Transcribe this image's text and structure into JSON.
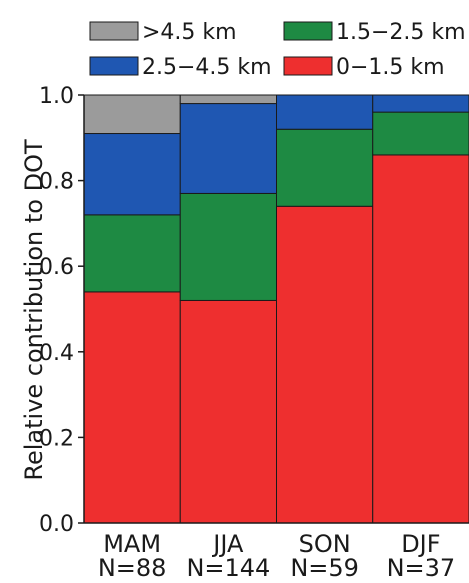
{
  "chart_data": {
    "type": "bar",
    "stacked": true,
    "title": "",
    "xlabel": "",
    "ylabel": "Relative contribution to DOT",
    "ylim": [
      0,
      1.0
    ],
    "yticks": [
      "0.0",
      "0.2",
      "0.4",
      "0.6",
      "0.8",
      "1.0"
    ],
    "grid": false,
    "legend_position": "top",
    "categories": [
      "MAM",
      "JJA",
      "SON",
      "DJF"
    ],
    "category_counts": [
      "N=88",
      "N=144",
      "N=59",
      "N=37"
    ],
    "series": [
      {
        "name": "0−1.5 km",
        "color": "#ee2f2f",
        "values": [
          0.54,
          0.52,
          0.74,
          0.86
        ]
      },
      {
        "name": "1.5−2.5 km",
        "color": "#1e8a43",
        "values": [
          0.18,
          0.25,
          0.18,
          0.1
        ]
      },
      {
        "name": "2.5−4.5 km",
        "color": "#1f57b2",
        "values": [
          0.19,
          0.21,
          0.08,
          0.04
        ]
      },
      {
        "name": ">4.5 km",
        "color": "#9b9b9b",
        "values": [
          0.09,
          0.02,
          0.0,
          0.0
        ]
      }
    ],
    "legend_order": [
      ">4.5 km",
      "1.5−2.5 km",
      "2.5−4.5 km",
      "0−1.5 km"
    ]
  }
}
